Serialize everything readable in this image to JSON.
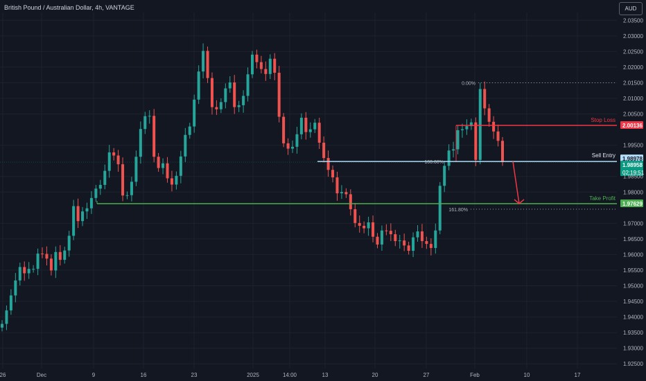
{
  "header": {
    "title": "British Pound / Australian Dollar, 4h, VANTAGE",
    "currency_button": "AUD"
  },
  "colors": {
    "background": "#131722",
    "grid": "#1e222d",
    "axis_text": "#b2b5be",
    "up": "#26a69a",
    "down": "#ef5350",
    "stop_loss": "#f23645",
    "sell_entry": "#b2dcf7",
    "take_profit": "#4caf50",
    "current_price": "#089981"
  },
  "chart_data": {
    "type": "candlestick",
    "y_axis_ticks": [
      "2.03500",
      "2.03000",
      "2.02500",
      "2.02000",
      "2.01500",
      "2.01000",
      "2.00500",
      "1.99500",
      "1.98500",
      "1.98000",
      "1.97000",
      "1.96500",
      "1.96000",
      "1.95500",
      "1.95000",
      "1.94500",
      "1.94000",
      "1.93500",
      "1.93000",
      "1.92500"
    ],
    "ylim": [
      1.9235,
      2.0375
    ],
    "x_axis_ticks": [
      "26",
      "Dec",
      "9",
      "16",
      "23",
      "2025",
      "14:00",
      "13",
      "20",
      "27",
      "Feb",
      "10",
      "17"
    ],
    "levels": {
      "stop_loss": {
        "label": "Stop Loss",
        "price": 2.00136,
        "price_text": "2.00136"
      },
      "sell_entry": {
        "label": "Sell Entry",
        "price": 1.98978,
        "price_text": "1.98978"
      },
      "take_profit": {
        "label": "Take Profit",
        "price": 1.97629,
        "price_text": "1.97629"
      },
      "current": {
        "price": 1.98958,
        "price_text": "1.98958",
        "countdown": "02:19:51"
      }
    },
    "fib_levels": [
      {
        "label": "0.00%",
        "price": 2.015
      },
      {
        "label": "100.00%",
        "price": 1.98978
      },
      {
        "label": "161.80%",
        "price": 1.9745
      }
    ],
    "closes": [
      1.9378,
      1.9421,
      1.9469,
      1.9517,
      1.956,
      1.954,
      1.9554,
      1.9554,
      1.9603,
      1.9602,
      1.9587,
      1.9549,
      1.9608,
      1.9583,
      1.9613,
      1.966,
      1.9755,
      1.9707,
      1.9738,
      1.9748,
      1.9781,
      1.9811,
      1.9823,
      1.9868,
      1.9927,
      1.9917,
      1.9889,
      1.9789,
      1.979,
      1.9833,
      1.9913,
      2.0002,
      2.0043,
      2.0044,
      1.9913,
      1.9877,
      1.9892,
      1.9844,
      1.9824,
      1.9852,
      1.9914,
      1.9983,
      2.001,
      2.0096,
      2.0186,
      2.0252,
      2.0165,
      2.0072,
      2.0065,
      2.0088,
      2.0132,
      2.0151,
      2.0072,
      2.0078,
      2.0108,
      2.0177,
      2.024,
      2.0216,
      2.0194,
      2.0178,
      2.0227,
      2.0182,
      2.0041,
      1.9956,
      1.9939,
      1.9945,
      1.9985,
      2.0038,
      1.9992,
      2.0001,
      2.0022,
      1.9958,
      1.9909,
      1.9871,
      1.9847,
      1.9796,
      1.98,
      1.9793,
      1.9745,
      1.9701,
      1.9692,
      1.9684,
      1.9703,
      1.9657,
      1.9632,
      1.9677,
      1.9676,
      1.9665,
      1.9643,
      1.9645,
      1.9629,
      1.9612,
      1.9655,
      1.9674,
      1.9643,
      1.9634,
      1.9621,
      1.9677,
      1.982,
      1.9884,
      1.9933,
      1.9937,
      1.9998,
      2.0001,
      2.0011,
      2.0023,
      1.9903,
      2.013,
      2.0068,
      2.0025,
      1.9994,
      1.9964,
      1.9896
    ]
  }
}
